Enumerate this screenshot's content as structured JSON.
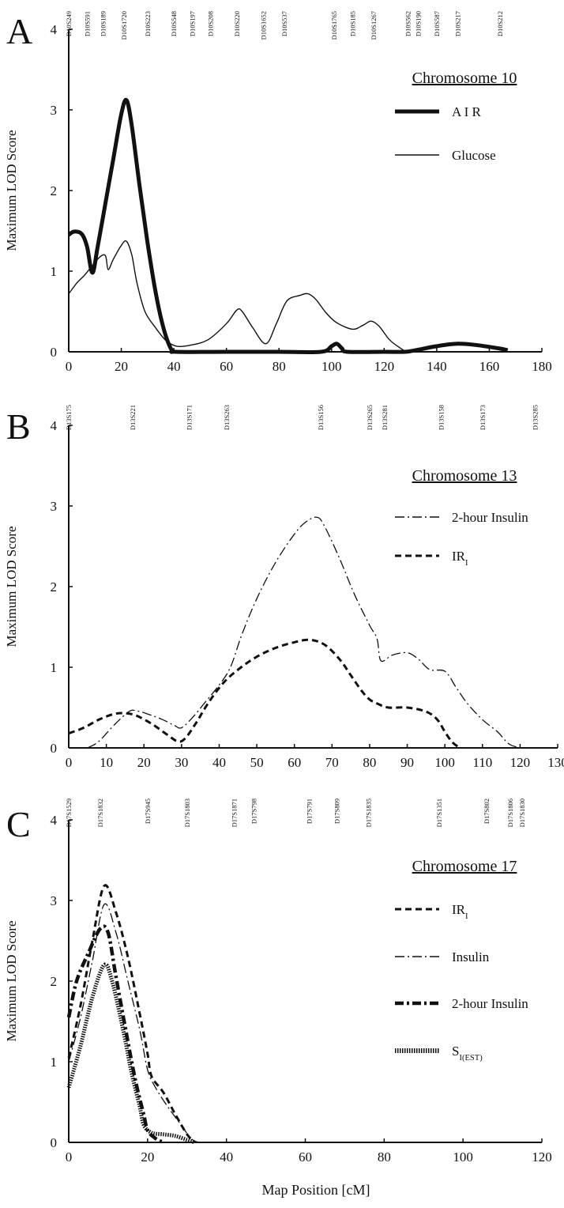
{
  "figure": {
    "xlabel": "Map Position [cM]"
  },
  "chart_data": [
    {
      "panel": "A",
      "type": "line",
      "title": "Chromosome 10",
      "ylabel": "Maximum LOD Score",
      "xlim": [
        0,
        180
      ],
      "ylim": [
        0,
        4
      ],
      "xticks": [
        "0",
        "20",
        "40",
        "60",
        "80",
        "100",
        "120",
        "140",
        "160",
        "180"
      ],
      "yticks": [
        "0",
        "1",
        "2",
        "3",
        "4"
      ],
      "markers": [
        {
          "name": "D10S249",
          "x": 0
        },
        {
          "name": "D10S591",
          "x": 7
        },
        {
          "name": "D10S189",
          "x": 13
        },
        {
          "name": "D10S1720",
          "x": 21
        },
        {
          "name": "D10S223",
          "x": 30
        },
        {
          "name": "D10S548",
          "x": 40
        },
        {
          "name": "D10S197",
          "x": 47
        },
        {
          "name": "D10S208",
          "x": 54
        },
        {
          "name": "D10S220",
          "x": 64
        },
        {
          "name": "D10S1652",
          "x": 74
        },
        {
          "name": "D10S537",
          "x": 82
        },
        {
          "name": "D10S1765",
          "x": 101
        },
        {
          "name": "D10S185",
          "x": 108
        },
        {
          "name": "D10S1267",
          "x": 116
        },
        {
          "name": "D10S562",
          "x": 129
        },
        {
          "name": "D10S190",
          "x": 133
        },
        {
          "name": "D10S587",
          "x": 140
        },
        {
          "name": "D10S217",
          "x": 148
        },
        {
          "name": "D10S212",
          "x": 164
        }
      ],
      "series": [
        {
          "name": "A I R",
          "style": "thick",
          "points": [
            [
              0,
              1.45
            ],
            [
              2,
              1.49
            ],
            [
              5,
              1.46
            ],
            [
              7,
              1.3
            ],
            [
              9,
              0.98
            ],
            [
              11,
              1.3
            ],
            [
              14,
              1.85
            ],
            [
              17,
              2.4
            ],
            [
              20,
              2.95
            ],
            [
              22,
              3.12
            ],
            [
              24,
              2.8
            ],
            [
              27,
              2.05
            ],
            [
              30,
              1.35
            ],
            [
              33,
              0.75
            ],
            [
              36,
              0.3
            ],
            [
              39,
              0.03
            ],
            [
              41,
              0
            ],
            [
              60,
              0
            ],
            [
              80,
              0
            ],
            [
              96,
              0
            ],
            [
              100,
              0.07
            ],
            [
              102,
              0.1
            ],
            [
              104,
              0.04
            ],
            [
              106,
              0
            ],
            [
              120,
              0
            ],
            [
              128,
              0
            ],
            [
              132,
              0.02
            ],
            [
              140,
              0.07
            ],
            [
              148,
              0.1
            ],
            [
              156,
              0.08
            ],
            [
              164,
              0.04
            ],
            [
              167,
              0.02
            ]
          ]
        },
        {
          "name": "Glucose",
          "style": "thin",
          "points": [
            [
              0,
              0.72
            ],
            [
              3,
              0.85
            ],
            [
              6,
              0.95
            ],
            [
              9,
              1.07
            ],
            [
              12,
              1.18
            ],
            [
              14,
              1.19
            ],
            [
              15,
              1.02
            ],
            [
              17,
              1.15
            ],
            [
              20,
              1.32
            ],
            [
              22,
              1.37
            ],
            [
              24,
              1.2
            ],
            [
              26,
              0.85
            ],
            [
              29,
              0.5
            ],
            [
              33,
              0.3
            ],
            [
              37,
              0.14
            ],
            [
              41,
              0.07
            ],
            [
              46,
              0.08
            ],
            [
              53,
              0.15
            ],
            [
              60,
              0.35
            ],
            [
              64,
              0.52
            ],
            [
              66,
              0.5
            ],
            [
              70,
              0.3
            ],
            [
              75,
              0.1
            ],
            [
              79,
              0.35
            ],
            [
              83,
              0.63
            ],
            [
              88,
              0.7
            ],
            [
              91,
              0.72
            ],
            [
              94,
              0.65
            ],
            [
              98,
              0.48
            ],
            [
              102,
              0.36
            ],
            [
              108,
              0.28
            ],
            [
              112,
              0.33
            ],
            [
              115,
              0.38
            ],
            [
              118,
              0.32
            ],
            [
              122,
              0.15
            ],
            [
              126,
              0.05
            ],
            [
              129,
              0
            ],
            [
              135,
              0
            ],
            [
              145,
              0
            ],
            [
              150,
              0
            ],
            [
              160,
              0
            ],
            [
              167,
              0
            ]
          ]
        }
      ]
    },
    {
      "panel": "B",
      "type": "line",
      "title": "Chromosome 13",
      "ylabel": "Maximum LOD Score",
      "xlim": [
        0,
        130
      ],
      "ylim": [
        0,
        4
      ],
      "xticks": [
        "0",
        "10",
        "20",
        "30",
        "40",
        "50",
        "60",
        "70",
        "80",
        "90",
        "100",
        "110",
        "120",
        "130"
      ],
      "yticks": [
        "0",
        "1",
        "2",
        "3",
        "4"
      ],
      "markers": [
        {
          "name": "D13S175",
          "x": 0
        },
        {
          "name": "D13S221",
          "x": 17
        },
        {
          "name": "D13S171",
          "x": 32
        },
        {
          "name": "D13S263",
          "x": 42
        },
        {
          "name": "D13S156",
          "x": 67
        },
        {
          "name": "D13S265",
          "x": 80
        },
        {
          "name": "D13S281",
          "x": 84
        },
        {
          "name": "D13S158",
          "x": 99
        },
        {
          "name": "D13S173",
          "x": 110
        },
        {
          "name": "D13S285",
          "x": 124
        }
      ],
      "series": [
        {
          "name": "2-hour Insulin",
          "style": "dashdot",
          "points": [
            [
              5,
              0
            ],
            [
              8,
              0.08
            ],
            [
              12,
              0.28
            ],
            [
              16,
              0.45
            ],
            [
              18,
              0.46
            ],
            [
              21,
              0.42
            ],
            [
              25,
              0.35
            ],
            [
              28,
              0.28
            ],
            [
              30,
              0.25
            ],
            [
              33,
              0.38
            ],
            [
              36,
              0.55
            ],
            [
              40,
              0.78
            ],
            [
              43,
              1.0
            ],
            [
              46,
              1.4
            ],
            [
              50,
              1.85
            ],
            [
              55,
              2.3
            ],
            [
              60,
              2.65
            ],
            [
              63,
              2.8
            ],
            [
              66,
              2.86
            ],
            [
              68,
              2.75
            ],
            [
              72,
              2.35
            ],
            [
              76,
              1.9
            ],
            [
              80,
              1.52
            ],
            [
              82,
              1.35
            ],
            [
              83,
              1.08
            ],
            [
              86,
              1.15
            ],
            [
              90,
              1.18
            ],
            [
              93,
              1.1
            ],
            [
              96,
              0.97
            ],
            [
              100,
              0.95
            ],
            [
              103,
              0.75
            ],
            [
              106,
              0.55
            ],
            [
              110,
              0.35
            ],
            [
              114,
              0.2
            ],
            [
              117,
              0.05
            ],
            [
              120,
              0
            ]
          ]
        },
        {
          "name": "IR_I",
          "style": "dashed",
          "points": [
            [
              0,
              0.18
            ],
            [
              4,
              0.25
            ],
            [
              8,
              0.35
            ],
            [
              12,
              0.42
            ],
            [
              15,
              0.43
            ],
            [
              18,
              0.4
            ],
            [
              22,
              0.3
            ],
            [
              26,
              0.17
            ],
            [
              29,
              0.08
            ],
            [
              31,
              0.12
            ],
            [
              34,
              0.32
            ],
            [
              37,
              0.55
            ],
            [
              41,
              0.8
            ],
            [
              45,
              0.97
            ],
            [
              50,
              1.13
            ],
            [
              55,
              1.24
            ],
            [
              60,
              1.31
            ],
            [
              64,
              1.34
            ],
            [
              68,
              1.28
            ],
            [
              72,
              1.1
            ],
            [
              75,
              0.9
            ],
            [
              78,
              0.7
            ],
            [
              80,
              0.6
            ],
            [
              82,
              0.55
            ],
            [
              85,
              0.5
            ],
            [
              90,
              0.5
            ],
            [
              95,
              0.45
            ],
            [
              98,
              0.35
            ],
            [
              100,
              0.2
            ],
            [
              102,
              0.07
            ],
            [
              104,
              0
            ]
          ]
        }
      ]
    },
    {
      "panel": "C",
      "type": "line",
      "title": "Chromosome 17",
      "ylabel": "Maximum LOD Score",
      "xlabel": "Map Position [cM]",
      "xlim": [
        0,
        120
      ],
      "ylim": [
        0,
        4
      ],
      "xticks": [
        "0",
        "20",
        "40",
        "60",
        "80",
        "100",
        "120"
      ],
      "yticks": [
        "0",
        "1",
        "2",
        "3",
        "4"
      ],
      "markers": [
        {
          "name": "D17S1529",
          "x": 0
        },
        {
          "name": "D17S1832",
          "x": 8
        },
        {
          "name": "D17S945",
          "x": 20
        },
        {
          "name": "D17S1803",
          "x": 30
        },
        {
          "name": "D17S1871",
          "x": 42
        },
        {
          "name": "D17S798",
          "x": 47
        },
        {
          "name": "D17S791",
          "x": 61
        },
        {
          "name": "D17S809",
          "x": 68
        },
        {
          "name": "D17S1835",
          "x": 76
        },
        {
          "name": "D17S1351",
          "x": 94
        },
        {
          "name": "D17S802",
          "x": 106
        },
        {
          "name": "D17S1806",
          "x": 112
        },
        {
          "name": "D17S1830",
          "x": 115
        }
      ],
      "series": [
        {
          "name": "IR_I",
          "style": "dashed",
          "points": [
            [
              0,
              1.05
            ],
            [
              3,
              1.7
            ],
            [
              6,
              2.5
            ],
            [
              9,
              3.18
            ],
            [
              12,
              2.85
            ],
            [
              15,
              2.3
            ],
            [
              18,
              1.6
            ],
            [
              20,
              1.1
            ],
            [
              21,
              0.82
            ],
            [
              24,
              0.62
            ],
            [
              27,
              0.35
            ],
            [
              30,
              0.1
            ],
            [
              32,
              0
            ]
          ]
        },
        {
          "name": "Insulin",
          "style": "dashdot",
          "points": [
            [
              0,
              1.0
            ],
            [
              3,
              1.55
            ],
            [
              6,
              2.25
            ],
            [
              9,
              2.95
            ],
            [
              12,
              2.6
            ],
            [
              15,
              2.0
            ],
            [
              18,
              1.4
            ],
            [
              20,
              0.9
            ],
            [
              22,
              0.68
            ],
            [
              25,
              0.45
            ],
            [
              28,
              0.25
            ],
            [
              31,
              0.05
            ],
            [
              33,
              0
            ]
          ]
        },
        {
          "name": "2-hour Insulin",
          "style": "thickdashdot",
          "points": [
            [
              0,
              1.55
            ],
            [
              2,
              2.0
            ],
            [
              5,
              2.35
            ],
            [
              8,
              2.65
            ],
            [
              10,
              2.6
            ],
            [
              12,
              2.05
            ],
            [
              15,
              1.25
            ],
            [
              17,
              0.75
            ],
            [
              19,
              0.35
            ],
            [
              20,
              0.15
            ],
            [
              22,
              0.05
            ],
            [
              24,
              0
            ]
          ]
        },
        {
          "name": "S_I(EST)",
          "style": "dotted",
          "points": [
            [
              0,
              0.68
            ],
            [
              3,
              1.2
            ],
            [
              6,
              1.8
            ],
            [
              9,
              2.2
            ],
            [
              11,
              2.0
            ],
            [
              14,
              1.35
            ],
            [
              16,
              0.85
            ],
            [
              18,
              0.45
            ],
            [
              19,
              0.22
            ],
            [
              21,
              0.12
            ],
            [
              24,
              0.1
            ],
            [
              27,
              0.08
            ],
            [
              30,
              0.03
            ],
            [
              32,
              0
            ]
          ]
        }
      ]
    }
  ]
}
